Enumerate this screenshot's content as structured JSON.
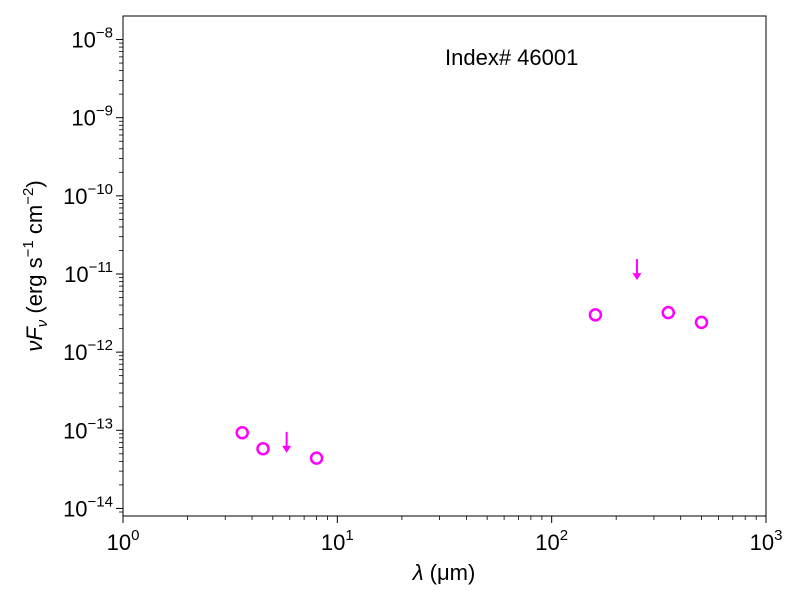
{
  "chart_data": {
    "type": "scatter",
    "annotation": "Index# 46001",
    "xlabel": {
      "symbol": "λ",
      "unit": "(μm)"
    },
    "ylabel": {
      "symbol": "νF",
      "subscript": "ν",
      "unit_prefix": "(erg s",
      "sup1": "−1",
      "unit_mid": " cm",
      "sup2": "−2",
      "unit_suffix": ")"
    },
    "x_scale": "log",
    "y_scale": "log",
    "xlim": [
      1,
      1000
    ],
    "ylim": [
      8e-15,
      2e-08
    ],
    "x_ticks": [
      {
        "value": 1,
        "base": "10",
        "exp": "0"
      },
      {
        "value": 10,
        "base": "10",
        "exp": "1"
      },
      {
        "value": 100,
        "base": "10",
        "exp": "2"
      },
      {
        "value": 1000,
        "base": "10",
        "exp": "3"
      }
    ],
    "y_ticks": [
      {
        "value": 1e-14,
        "base": "10",
        "exp": "−14"
      },
      {
        "value": 1e-13,
        "base": "10",
        "exp": "−13"
      },
      {
        "value": 1e-12,
        "base": "10",
        "exp": "−12"
      },
      {
        "value": 1e-11,
        "base": "10",
        "exp": "−11"
      },
      {
        "value": 1e-10,
        "base": "10",
        "exp": "−10"
      },
      {
        "value": 1e-09,
        "base": "10",
        "exp": "−9"
      },
      {
        "value": 1e-08,
        "base": "10",
        "exp": "−8"
      }
    ],
    "marker_color": "#ff00ff",
    "detections": [
      {
        "x": 3.6,
        "y": 9.3e-14
      },
      {
        "x": 4.5,
        "y": 5.8e-14
      },
      {
        "x": 8.0,
        "y": 4.4e-14
      },
      {
        "x": 160,
        "y": 3e-12
      },
      {
        "x": 350,
        "y": 3.2e-12
      },
      {
        "x": 500,
        "y": 2.4e-12
      }
    ],
    "upper_limits": [
      {
        "x": 5.8,
        "y": 8e-14
      },
      {
        "x": 250,
        "y": 1.3e-11
      }
    ],
    "grid": false
  }
}
